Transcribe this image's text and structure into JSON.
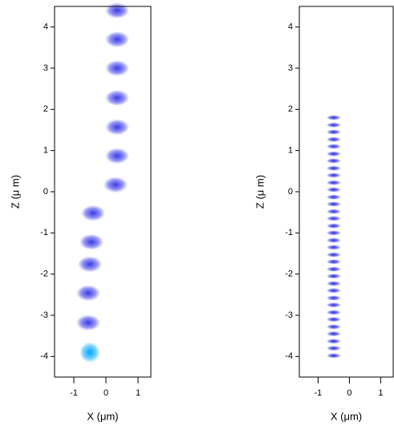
{
  "chart_data": [
    {
      "type": "scatter",
      "xlabel": "X (μm)",
      "ylabel": "Z (μ m)",
      "xlim": [
        -1.6,
        1.4
      ],
      "xticks": [
        -1,
        0,
        1
      ],
      "ylim": [
        -4.5,
        4.5
      ],
      "yticks": [
        -4,
        -3,
        -2,
        -1,
        0,
        1,
        2,
        3,
        4
      ],
      "series": [
        {
          "color": "#3a3ae8",
          "x": [
            0.35,
            0.35,
            0.35,
            0.35,
            0.35,
            0.35,
            0.3,
            -0.4,
            -0.45,
            -0.5,
            -0.55,
            -0.55
          ],
          "values": [
            4.4,
            3.7,
            3.0,
            2.28,
            1.57,
            0.87,
            0.17,
            -0.52,
            -1.22,
            -1.76,
            -2.46,
            -3.18
          ]
        },
        {
          "color": "#00a8ff",
          "x": [
            -0.5
          ],
          "values": [
            -3.9
          ]
        }
      ]
    },
    {
      "type": "scatter",
      "xlabel": "X (μm)",
      "ylabel": "Z (μ m)",
      "xlim": [
        -1.6,
        1.4
      ],
      "xticks": [
        -1,
        0,
        1
      ],
      "ylim": [
        -4.5,
        4.5
      ],
      "yticks": [
        -4,
        -3,
        -2,
        -1,
        0,
        1,
        2,
        3,
        4
      ],
      "series": [
        {
          "color": "#2a2ae0",
          "x": [
            -0.5,
            -0.5,
            -0.5,
            -0.5,
            -0.5,
            -0.5,
            -0.5,
            -0.5,
            -0.5,
            -0.5,
            -0.5,
            -0.5,
            -0.5,
            -0.5,
            -0.5,
            -0.5,
            -0.5,
            -0.5,
            -0.5,
            -0.5,
            -0.5,
            -0.5,
            -0.5,
            -0.5,
            -0.5,
            -0.5,
            -0.5,
            -0.5,
            -0.5,
            -0.5,
            -0.5,
            -0.5,
            -0.5,
            -0.5
          ],
          "values": [
            1.8,
            1.62,
            1.45,
            1.27,
            1.1,
            0.92,
            0.75,
            0.57,
            0.4,
            0.22,
            0.05,
            -0.13,
            -0.3,
            -0.48,
            -0.65,
            -0.83,
            -1.0,
            -1.18,
            -1.35,
            -1.53,
            -1.7,
            -1.88,
            -2.05,
            -2.23,
            -2.4,
            -2.58,
            -2.75,
            -2.93,
            -3.1,
            -3.28,
            -3.45,
            -3.63,
            -3.8,
            -3.98
          ]
        }
      ]
    }
  ]
}
